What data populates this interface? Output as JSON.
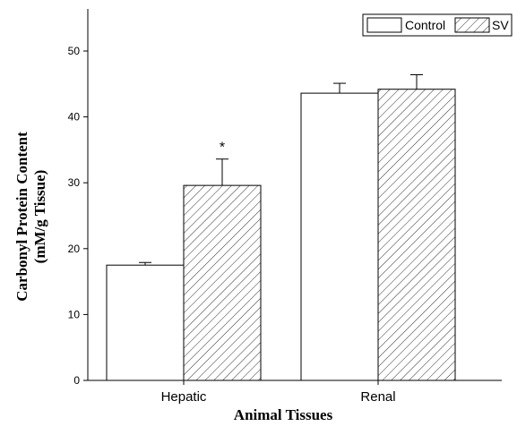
{
  "chart_data": {
    "type": "bar",
    "categories": [
      "Hepatic",
      "Renal"
    ],
    "series": [
      {
        "name": "Control",
        "values": [
          17.5,
          43.6
        ],
        "errors": [
          0.4,
          1.5
        ],
        "pattern": "none"
      },
      {
        "name": "SV",
        "values": [
          29.6,
          44.2
        ],
        "errors": [
          4.0,
          2.2
        ],
        "pattern": "diagonal-hatch"
      }
    ],
    "xlabel": "Animal Tissues",
    "ylabel_line1": "Carbonyl Protein Content",
    "ylabel_line2": "(mM/g Tissue)",
    "ylim": [
      0,
      50
    ],
    "yticks": [
      0,
      10,
      20,
      30,
      40,
      50
    ],
    "annotations": [
      {
        "category": "Hepatic",
        "series": "SV",
        "text": "*"
      }
    ],
    "legend_position": "top-right",
    "grid": false
  }
}
